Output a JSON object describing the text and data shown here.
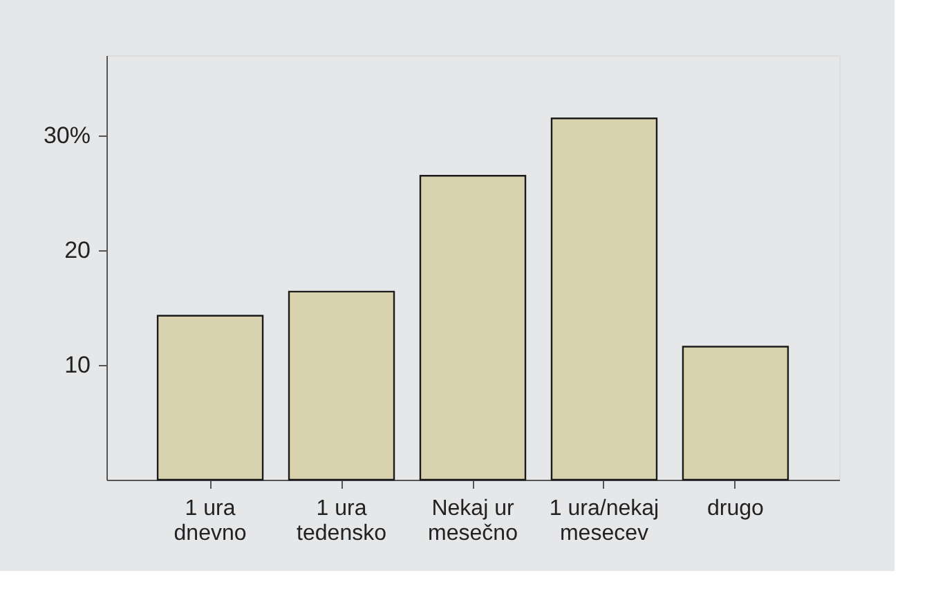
{
  "chart_data": {
    "type": "bar",
    "categories": [
      "1 ura\ndnevno",
      "1 ura\ntedensko",
      "Nekaj ur\nmesečno",
      "1 ura/nekaj\nmesecev",
      "drugo"
    ],
    "values": [
      14.3,
      16.4,
      26.5,
      31.5,
      11.6
    ],
    "color": "#d9d2ae",
    "ylim": [
      0,
      37
    ],
    "yticks": [
      10,
      20,
      {
        "value": 30,
        "label": "30%"
      }
    ],
    "grid": false
  }
}
